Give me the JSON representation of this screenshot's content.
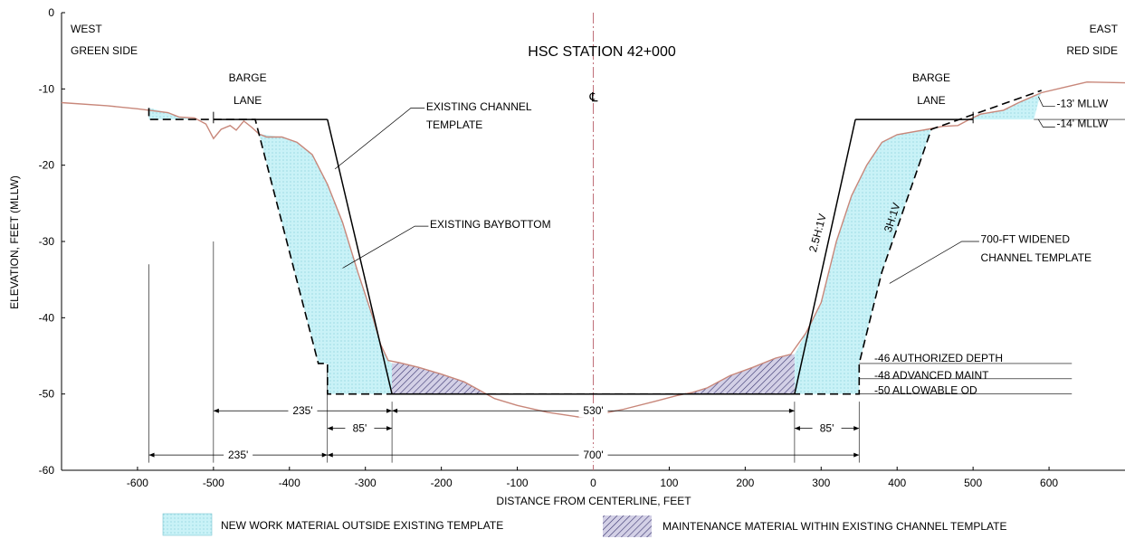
{
  "chart_data": {
    "type": "diagram",
    "title": "HSC STATION 42+000",
    "xlabel": "DISTANCE FROM CENTERLINE, FEET",
    "ylabel": "ELEVATION, FEET (MLLW)",
    "xlim": [
      -700,
      700
    ],
    "ylim": [
      -60,
      0
    ],
    "x_ticks": [
      -600,
      -500,
      -400,
      -300,
      -200,
      -100,
      0,
      100,
      200,
      300,
      400,
      500,
      600
    ],
    "y_ticks": [
      0,
      -10,
      -20,
      -30,
      -40,
      -50,
      -60
    ],
    "x_tick_labels": [
      "-600",
      "-500",
      "-400",
      "-300",
      "-200",
      "-100",
      "0",
      "100",
      "200",
      "300",
      "400",
      "500",
      "600"
    ],
    "y_tick_labels": [
      "0",
      "-10",
      "-20",
      "-30",
      "-40",
      "-50",
      "-60"
    ],
    "side_labels": {
      "west": [
        "WEST",
        "GREEN SIDE"
      ],
      "east": [
        "EAST",
        "RED SIDE"
      ]
    },
    "centerline_symbol": "℄",
    "colors": {
      "baybottom": "#c8877a",
      "new_work_fill": "#c9f2f7",
      "maintenance_fill": "#d3d0e6",
      "centerline": "#c0707a"
    },
    "existing_baybottom": [
      [
        -700,
        -11.8
      ],
      [
        -640,
        -12.2
      ],
      [
        -600,
        -12.6
      ],
      [
        -560,
        -13.1
      ],
      [
        -545,
        -13.7
      ],
      [
        -525,
        -13.8
      ],
      [
        -510,
        -14.6
      ],
      [
        -500,
        -16.5
      ],
      [
        -490,
        -15.3
      ],
      [
        -478,
        -14.8
      ],
      [
        -470,
        -15.4
      ],
      [
        -460,
        -14.2
      ],
      [
        -450,
        -15.0
      ],
      [
        -440,
        -15.9
      ],
      [
        -430,
        -16.3
      ],
      [
        -410,
        -16.3
      ],
      [
        -390,
        -17.0
      ],
      [
        -370,
        -18.6
      ],
      [
        -350,
        -22.5
      ],
      [
        -330,
        -27.5
      ],
      [
        -310,
        -34.0
      ],
      [
        -290,
        -40.0
      ],
      [
        -280,
        -43.5
      ],
      [
        -270,
        -45.6
      ],
      [
        -255,
        -45.9
      ],
      [
        -230,
        -46.5
      ],
      [
        -200,
        -47.4
      ],
      [
        -170,
        -48.4
      ],
      [
        -150,
        -49.5
      ],
      [
        -130,
        -50.6
      ],
      [
        -100,
        -51.5
      ],
      [
        -60,
        -52.4
      ],
      [
        -20,
        -53.0
      ],
      [
        0,
        -52.8
      ],
      [
        40,
        -52.0
      ],
      [
        80,
        -51.0
      ],
      [
        110,
        -50.2
      ],
      [
        130,
        -49.8
      ],
      [
        150,
        -49.2
      ],
      [
        180,
        -47.6
      ],
      [
        210,
        -46.5
      ],
      [
        240,
        -45.3
      ],
      [
        260,
        -44.8
      ],
      [
        280,
        -42.0
      ],
      [
        300,
        -38.0
      ],
      [
        320,
        -30.0
      ],
      [
        340,
        -24.0
      ],
      [
        360,
        -20.0
      ],
      [
        380,
        -17.0
      ],
      [
        400,
        -16.0
      ],
      [
        440,
        -15.3
      ],
      [
        460,
        -14.9
      ],
      [
        480,
        -14.8
      ],
      [
        495,
        -14.0
      ],
      [
        510,
        -13.3
      ],
      [
        540,
        -12.8
      ],
      [
        560,
        -11.8
      ],
      [
        590,
        -10.5
      ],
      [
        620,
        -9.8
      ],
      [
        650,
        -9.1
      ],
      [
        700,
        -9.2
      ]
    ],
    "existing_channel_template": [
      [
        -350,
        -14
      ],
      [
        -265,
        -50
      ],
      [
        265,
        -50
      ],
      [
        345,
        -14
      ]
    ],
    "existing_template_west_top": [
      [
        -500,
        -14
      ],
      [
        -350,
        -14
      ]
    ],
    "existing_template_east_top": [
      [
        345,
        -14
      ],
      [
        500,
        -14
      ]
    ],
    "widened_template": [
      [
        -585,
        -12.5
      ],
      [
        -585,
        -14
      ],
      [
        -445,
        -14
      ],
      [
        -362,
        -46
      ],
      [
        -350,
        -46
      ],
      [
        -350,
        -50
      ],
      [
        350,
        -50
      ],
      [
        350,
        -46
      ],
      [
        380,
        -34
      ],
      [
        445,
        -15.3
      ],
      [
        590,
        -10.2
      ]
    ],
    "new_work_regions": [
      [
        [
          -585,
          -12.5
        ],
        [
          -560,
          -13.1
        ],
        [
          -545,
          -13.7
        ],
        [
          -525,
          -14
        ],
        [
          -585,
          -14
        ]
      ],
      [
        [
          -440,
          -15.9
        ],
        [
          -410,
          -16.3
        ],
        [
          -390,
          -17.0
        ],
        [
          -370,
          -18.6
        ],
        [
          -350,
          -22.5
        ],
        [
          -330,
          -27.5
        ],
        [
          -310,
          -34.0
        ],
        [
          -290,
          -40.0
        ],
        [
          -280,
          -43.5
        ],
        [
          -270,
          -45.6
        ],
        [
          -265,
          -46
        ],
        [
          -265,
          -50
        ],
        [
          -350,
          -50
        ],
        [
          -350,
          -46
        ],
        [
          -362,
          -46
        ]
      ],
      [
        [
          265,
          -44.8
        ],
        [
          280,
          -42.0
        ],
        [
          300,
          -38.0
        ],
        [
          320,
          -30.0
        ],
        [
          340,
          -24.0
        ],
        [
          360,
          -20.0
        ],
        [
          380,
          -17.0
        ],
        [
          400,
          -16.0
        ],
        [
          445,
          -15.3
        ],
        [
          380,
          -34
        ],
        [
          350,
          -46
        ],
        [
          350,
          -50
        ],
        [
          265,
          -50
        ]
      ],
      [
        [
          495,
          -14.0
        ],
        [
          510,
          -13.3
        ],
        [
          540,
          -12.8
        ],
        [
          560,
          -11.8
        ],
        [
          590,
          -10.5
        ],
        [
          590,
          -10.2
        ],
        [
          580,
          -14
        ],
        [
          495,
          -14
        ]
      ]
    ],
    "maintenance_regions": [
      [
        [
          -265,
          -46
        ],
        [
          -255,
          -45.9
        ],
        [
          -230,
          -46.5
        ],
        [
          -200,
          -47.4
        ],
        [
          -170,
          -48.4
        ],
        [
          -150,
          -49.5
        ],
        [
          -145,
          -50
        ],
        [
          -265,
          -50
        ]
      ],
      [
        [
          120,
          -50
        ],
        [
          130,
          -49.8
        ],
        [
          150,
          -49.2
        ],
        [
          180,
          -47.6
        ],
        [
          210,
          -46.5
        ],
        [
          240,
          -45.3
        ],
        [
          260,
          -44.8
        ],
        [
          265,
          -44.8
        ],
        [
          265,
          -50
        ]
      ]
    ],
    "annotations": [
      {
        "text": "BARGE",
        "x": -455,
        "y": -9.0
      },
      {
        "text": "LANE",
        "x": -455,
        "y": -12.0
      },
      {
        "text": "BARGE",
        "x": 445,
        "y": -9.0
      },
      {
        "text": "LANE",
        "x": 445,
        "y": -12.0
      },
      {
        "text": "EXISTING CHANNEL",
        "x": -220,
        "y": -12.8
      },
      {
        "text": "TEMPLATE",
        "x": -220,
        "y": -15.2
      },
      {
        "text": "EXISTING BAYBOTTOM",
        "x": -215,
        "y": -28.2
      },
      {
        "text": "700-FT WIDENED",
        "x": 510,
        "y": -30.2
      },
      {
        "text": "CHANNEL TEMPLATE",
        "x": 510,
        "y": -32.6
      },
      {
        "text": "-13' MLLW",
        "x": 610,
        "y": -12.4
      },
      {
        "text": "-14' MLLW",
        "x": 610,
        "y": -15.0
      },
      {
        "text": "-46 AUTHORIZED DEPTH",
        "x": 370,
        "y": -45.8
      },
      {
        "text": "-48 ADVANCED MAINT",
        "x": 370,
        "y": -48.0
      },
      {
        "text": "-50 ALLOWABLE OD",
        "x": 370,
        "y": -50.0
      }
    ],
    "slope_labels": [
      {
        "text": "2.5H:1V",
        "x": 300,
        "y": -29
      },
      {
        "text": "3H:1V",
        "x": 398,
        "y": -27
      }
    ],
    "dimensions": [
      {
        "text": "235'",
        "from": -500,
        "to": -265,
        "y": -52.2
      },
      {
        "text": "85'",
        "from": -350,
        "to": -265,
        "y": -54.5
      },
      {
        "text": "530'",
        "from": -265,
        "to": 265,
        "y": -52.2
      },
      {
        "text": "85'",
        "from": 265,
        "to": 350,
        "y": -54.5
      },
      {
        "text": "235'",
        "from": -585,
        "to": -350,
        "y": -58.0
      },
      {
        "text": "700'",
        "from": -350,
        "to": 350,
        "y": -58.0
      }
    ],
    "legend": [
      {
        "label": "NEW WORK MATERIAL OUTSIDE EXISTING TEMPLATE",
        "fill": "new_work"
      },
      {
        "label": "MAINTENANCE MATERIAL WITHIN EXISTING CHANNEL TEMPLATE",
        "fill": "maintenance"
      }
    ]
  }
}
